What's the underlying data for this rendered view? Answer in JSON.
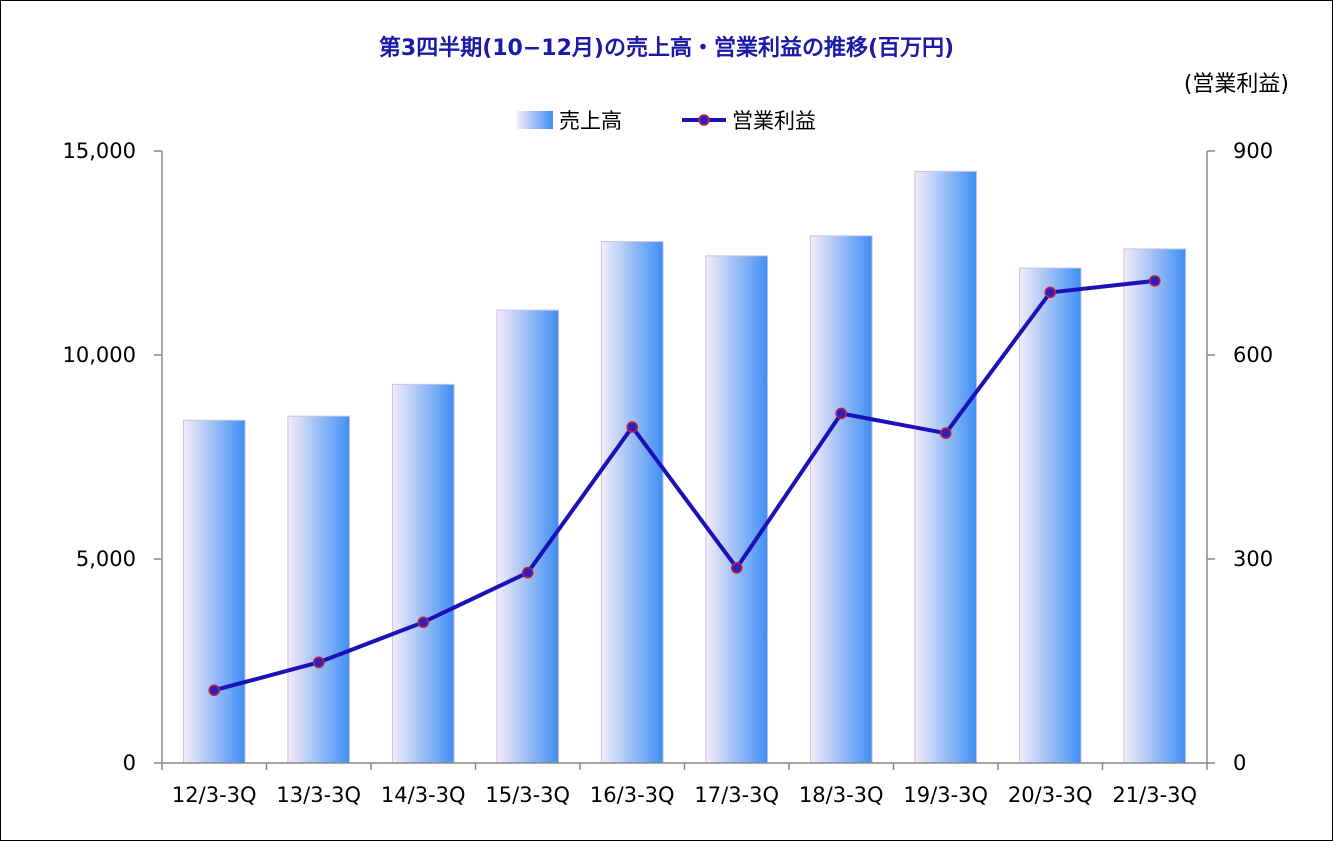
{
  "chart_data": {
    "type": "bar",
    "title": "第3四半期(10−12月)の売上高・営業利益の推移(百万円)",
    "y2_unit": "(営業利益)",
    "categories": [
      "12/3-3Q",
      "13/3-3Q",
      "14/3-3Q",
      "15/3-3Q",
      "16/3-3Q",
      "17/3-3Q",
      "18/3-3Q",
      "19/3-3Q",
      "20/3-3Q",
      "21/3-3Q"
    ],
    "series": [
      {
        "name": "売上高",
        "type": "bar",
        "axis": "left",
        "values": [
          8400,
          8500,
          9280,
          11100,
          12780,
          12430,
          12920,
          14500,
          12130,
          12600
        ]
      },
      {
        "name": "営業利益",
        "type": "line",
        "axis": "right",
        "values": [
          107,
          148,
          207,
          280,
          494,
          287,
          514,
          485,
          692,
          709
        ]
      }
    ],
    "ylim": [
      0,
      15000
    ],
    "yticks": [
      "0",
      "5,000",
      "10,000",
      "15,000"
    ],
    "y2lim": [
      0,
      900
    ],
    "y2ticks": [
      "0",
      "300",
      "600",
      "900"
    ],
    "legend_position": "top-center",
    "grid": false,
    "colors": {
      "bar_light": "#f4ecf8",
      "bar_dark": "#3f8ff5",
      "line": "#1a12b8",
      "marker": "#c0203a",
      "title": "#1a1aa6"
    }
  }
}
